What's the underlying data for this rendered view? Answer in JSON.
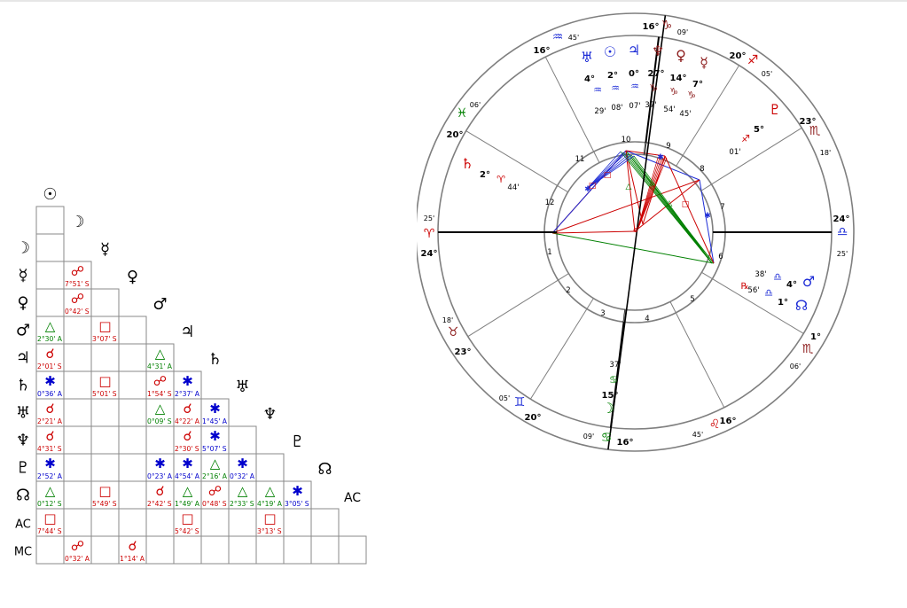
{
  "aspect_grid": {
    "row_labels": [
      {
        "glyph": "☽",
        "color": "#000000"
      },
      {
        "glyph": "☿",
        "color": "#000000"
      },
      {
        "glyph": "♀",
        "color": "#000000"
      },
      {
        "glyph": "♂",
        "color": "#000000"
      },
      {
        "glyph": "♃",
        "color": "#000000"
      },
      {
        "glyph": "♄",
        "color": "#000000"
      },
      {
        "glyph": "♅",
        "color": "#000000"
      },
      {
        "glyph": "♆",
        "color": "#000000"
      },
      {
        "glyph": "♇",
        "color": "#000000"
      },
      {
        "glyph": "☊",
        "color": "#000000"
      },
      {
        "glyph": "AC",
        "color": "#000000"
      },
      {
        "glyph": "MC",
        "color": "#000000"
      }
    ],
    "diagonal_labels": [
      "☉",
      "☽",
      "☿",
      "♀",
      "♂",
      "♃",
      "♄",
      "♅",
      "♆",
      "♇",
      "☊",
      "AC"
    ],
    "aspects": [
      {
        "row": 1,
        "col": 1,
        "glyph": "☍",
        "orb": "7°51' S",
        "color": "#cc0000"
      },
      {
        "row": 2,
        "col": 1,
        "glyph": "☍",
        "orb": "0°42' S",
        "color": "#cc0000"
      },
      {
        "row": 3,
        "col": 0,
        "glyph": "△",
        "orb": "2°30' A",
        "color": "#008000"
      },
      {
        "row": 3,
        "col": 2,
        "glyph": "□",
        "orb": "3°07' S",
        "color": "#cc0000"
      },
      {
        "row": 4,
        "col": 0,
        "glyph": "☌",
        "orb": "2°01' S",
        "color": "#cc0000"
      },
      {
        "row": 4,
        "col": 4,
        "glyph": "△",
        "orb": "4°31' A",
        "color": "#008000"
      },
      {
        "row": 5,
        "col": 0,
        "glyph": "✱",
        "orb": "0°36' A",
        "color": "#0000cc"
      },
      {
        "row": 5,
        "col": 2,
        "glyph": "□",
        "orb": "5°01' S",
        "color": "#cc0000"
      },
      {
        "row": 5,
        "col": 4,
        "glyph": "☍",
        "orb": "1°54' S",
        "color": "#cc0000"
      },
      {
        "row": 5,
        "col": 5,
        "glyph": "✱",
        "orb": "2°37' A",
        "color": "#0000cc"
      },
      {
        "row": 6,
        "col": 0,
        "glyph": "☌",
        "orb": "2°21' A",
        "color": "#cc0000"
      },
      {
        "row": 6,
        "col": 4,
        "glyph": "△",
        "orb": "0°09' S",
        "color": "#008000"
      },
      {
        "row": 6,
        "col": 5,
        "glyph": "☌",
        "orb": "4°22' A",
        "color": "#cc0000"
      },
      {
        "row": 6,
        "col": 6,
        "glyph": "✱",
        "orb": "1°45' A",
        "color": "#0000cc"
      },
      {
        "row": 7,
        "col": 0,
        "glyph": "☌",
        "orb": "4°31' S",
        "color": "#cc0000"
      },
      {
        "row": 7,
        "col": 5,
        "glyph": "☌",
        "orb": "2°30' S",
        "color": "#cc0000"
      },
      {
        "row": 7,
        "col": 6,
        "glyph": "✱",
        "orb": "5°07' S",
        "color": "#0000cc"
      },
      {
        "row": 8,
        "col": 0,
        "glyph": "✱",
        "orb": "2°52' A",
        "color": "#0000cc"
      },
      {
        "row": 8,
        "col": 4,
        "glyph": "✱",
        "orb": "0°23' A",
        "color": "#0000cc"
      },
      {
        "row": 8,
        "col": 5,
        "glyph": "✱",
        "orb": "4°54' A",
        "color": "#0000cc"
      },
      {
        "row": 8,
        "col": 6,
        "glyph": "△",
        "orb": "2°16' A",
        "color": "#008000"
      },
      {
        "row": 8,
        "col": 7,
        "glyph": "✱",
        "orb": "0°32' A",
        "color": "#0000cc"
      },
      {
        "row": 9,
        "col": 0,
        "glyph": "△",
        "orb": "0°12' S",
        "color": "#008000"
      },
      {
        "row": 9,
        "col": 2,
        "glyph": "□",
        "orb": "5°49' S",
        "color": "#cc0000"
      },
      {
        "row": 9,
        "col": 4,
        "glyph": "☌",
        "orb": "2°42' S",
        "color": "#cc0000"
      },
      {
        "row": 9,
        "col": 5,
        "glyph": "△",
        "orb": "1°49' A",
        "color": "#008000"
      },
      {
        "row": 9,
        "col": 6,
        "glyph": "☍",
        "orb": "0°48' S",
        "color": "#cc0000"
      },
      {
        "row": 9,
        "col": 7,
        "glyph": "△",
        "orb": "2°33' S",
        "color": "#008000"
      },
      {
        "row": 9,
        "col": 8,
        "glyph": "△",
        "orb": "4°19' A",
        "color": "#008000"
      },
      {
        "row": 9,
        "col": 9,
        "glyph": "✱",
        "orb": "3°05' S",
        "color": "#0000cc"
      },
      {
        "row": 10,
        "col": 0,
        "glyph": "□",
        "orb": "7°44' S",
        "color": "#cc0000"
      },
      {
        "row": 10,
        "col": 5,
        "glyph": "□",
        "orb": "5°42' S",
        "color": "#cc0000"
      },
      {
        "row": 10,
        "col": 8,
        "glyph": "□",
        "orb": "3°13' S",
        "color": "#cc0000"
      },
      {
        "row": 11,
        "col": 1,
        "glyph": "☍",
        "orb": "0°32' A",
        "color": "#cc0000"
      },
      {
        "row": 11,
        "col": 3,
        "glyph": "☌",
        "orb": "1°14' A",
        "color": "#cc0000"
      }
    ]
  },
  "wheel": {
    "colors": {
      "ring": "#7f7f7f",
      "axis": "#000000",
      "red": "#cc0000",
      "blue": "#1d2cd6",
      "green": "#008000"
    },
    "cusp_labels": [
      {
        "name": "asc",
        "deg": "24°",
        "glyph": "♎",
        "min": "25'",
        "sign_color": "#1d2cd6"
      },
      {
        "name": "c2",
        "deg": "1°",
        "glyph": "♏",
        "min": "06'",
        "sign_color": "#8b1a1a"
      },
      {
        "name": "c3",
        "deg": "16°",
        "glyph": "♌",
        "min": "45'",
        "sign_color": "#cc0000"
      },
      {
        "name": "ic",
        "deg": "16°",
        "glyph": "♋",
        "min": "09'",
        "sign_color": "#008000"
      },
      {
        "name": "c5",
        "deg": "20°",
        "glyph": "♊",
        "min": "05'",
        "sign_color": "#1d2cd6"
      },
      {
        "name": "c6",
        "deg": "23°",
        "glyph": "♉",
        "min": "18'",
        "sign_color": "#8b1a1a"
      },
      {
        "name": "dsc",
        "deg": "24°",
        "glyph": "♈",
        "min": "25'",
        "sign_color": "#cc0000"
      },
      {
        "name": "c8",
        "deg": "20°",
        "glyph": "♓",
        "min": "06'",
        "sign_color": "#008000"
      },
      {
        "name": "c9",
        "deg": "16°",
        "glyph": "♒",
        "min": "45'",
        "sign_color": "#1d2cd6"
      },
      {
        "name": "mc",
        "deg": "16°",
        "glyph": "♑",
        "min": "09'",
        "sign_color": "#8b1a1a"
      },
      {
        "name": "c11",
        "deg": "20°",
        "glyph": "♐",
        "min": "05'",
        "sign_color": "#cc0000"
      },
      {
        "name": "c12",
        "deg": "23°",
        "glyph": "♏",
        "min": "18'",
        "sign_color": "#8b1a1a"
      }
    ],
    "house_numbers": [
      "1",
      "2",
      "3",
      "4",
      "5",
      "6",
      "7",
      "8",
      "9",
      "10",
      "11",
      "12"
    ],
    "planets": [
      {
        "name": "uranus",
        "glyph": "♅",
        "deg": "4°",
        "sign": "♒",
        "min": "29'",
        "color": "#1d2cd6"
      },
      {
        "name": "sun",
        "glyph": "☉",
        "deg": "2°",
        "sign": "♒",
        "min": "08'",
        "color": "#1d2cd6"
      },
      {
        "name": "jupiter",
        "glyph": "♃",
        "deg": "0°",
        "sign": "♒",
        "min": "07'",
        "color": "#1d2cd6"
      },
      {
        "name": "neptune",
        "glyph": "♆",
        "deg": "27°",
        "sign": "♑",
        "min": "37'",
        "color": "#8b1a1a"
      },
      {
        "name": "venus",
        "glyph": "♀",
        "deg": "14°",
        "sign": "♑",
        "min": "54'",
        "color": "#8b1a1a"
      },
      {
        "name": "mercury",
        "glyph": "☿",
        "deg": "7°",
        "sign": "♑",
        "min": "45'",
        "color": "#8b1a1a"
      },
      {
        "name": "pluto",
        "glyph": "♇",
        "deg": "5°",
        "sign": "♐",
        "min": "01'",
        "color": "#cc0000"
      },
      {
        "name": "mars",
        "glyph": "♂",
        "deg": "4°",
        "sign": "♎",
        "min": "38'",
        "color": "#1d2cd6"
      },
      {
        "name": "node",
        "glyph": "☊",
        "deg": "1°",
        "sign": "♎",
        "min": "56'",
        "color": "#1d2cd6",
        "retro": "℞"
      },
      {
        "name": "moon",
        "glyph": "☽",
        "deg": "15°",
        "sign": "♋",
        "min": "37'",
        "color": "#008000"
      },
      {
        "name": "saturn",
        "glyph": "♄",
        "deg": "2°",
        "sign": "♈",
        "min": "44'",
        "color": "#cc0000"
      }
    ]
  }
}
